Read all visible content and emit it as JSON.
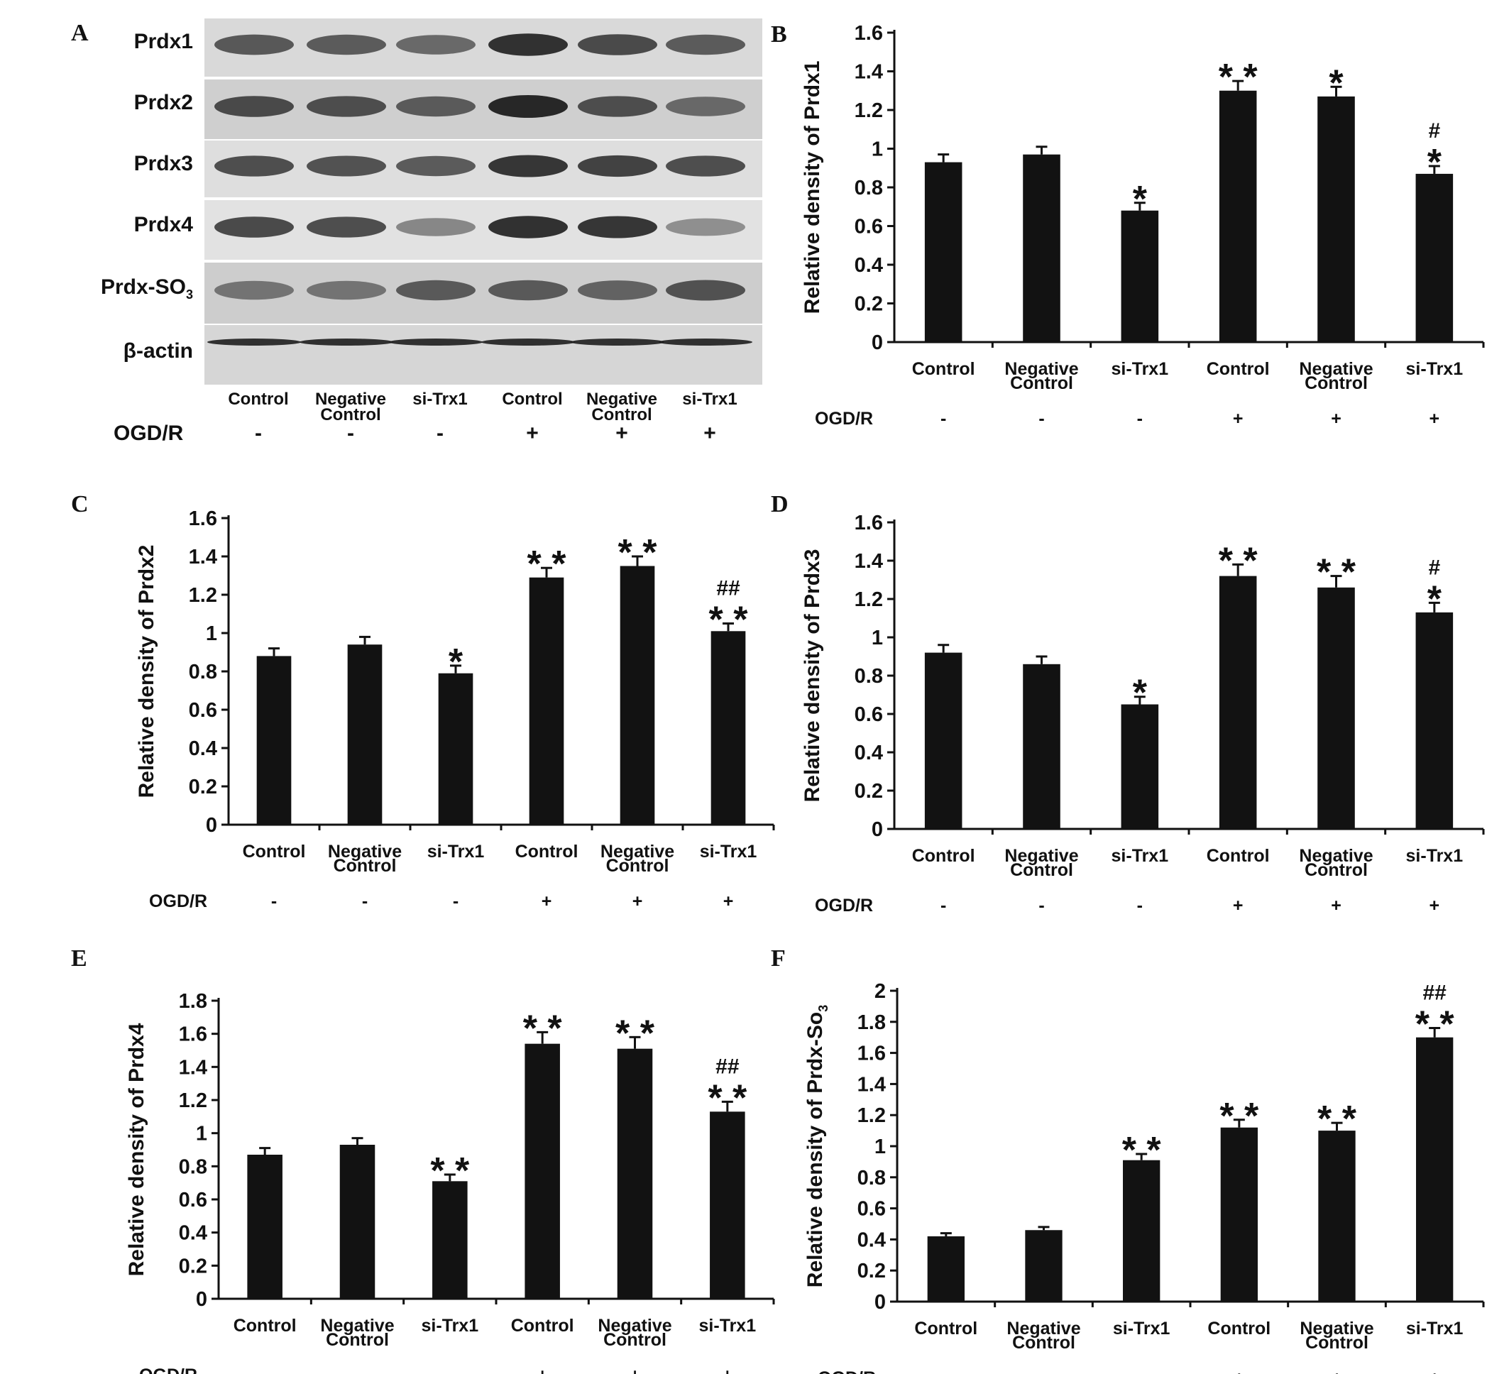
{
  "panel_A": {
    "letter": "A",
    "rows": [
      {
        "label": "Prdx1",
        "intensities": [
          0.72,
          0.7,
          0.62,
          0.95,
          0.8,
          0.7
        ]
      },
      {
        "label": "Prdx2",
        "intensities": [
          0.8,
          0.78,
          0.7,
          1.0,
          0.78,
          0.62
        ]
      },
      {
        "label": "Prdx3",
        "intensities": [
          0.78,
          0.76,
          0.7,
          0.92,
          0.85,
          0.78
        ]
      },
      {
        "label": "Prdx4",
        "intensities": [
          0.8,
          0.78,
          0.45,
          0.95,
          0.92,
          0.4
        ]
      },
      {
        "label": "Prdx-SO",
        "label_sub": "3",
        "intensities": [
          0.55,
          0.55,
          0.7,
          0.7,
          0.65,
          0.75
        ]
      },
      {
        "label": "β-actin",
        "intensities": [
          0.95,
          0.95,
          0.95,
          0.95,
          0.95,
          0.95
        ]
      }
    ],
    "lanes": [
      {
        "name": "Control",
        "ogd": "-"
      },
      {
        "name": "Negative\nControl",
        "ogd": "-"
      },
      {
        "name": "si-Trx1",
        "ogd": "-"
      },
      {
        "name": "Control",
        "ogd": "+"
      },
      {
        "name": "Negative\nControl",
        "ogd": "+"
      },
      {
        "name": "si-Trx1",
        "ogd": "+"
      }
    ],
    "ogd_label": "OGD/R"
  },
  "chart_data": [
    {
      "panel": "B",
      "type": "bar",
      "categories": [
        "Control",
        "Negative\nControl",
        "si-Trx1",
        "Control",
        "Negative\nControl",
        "si-Trx1"
      ],
      "ogd": [
        "-",
        "-",
        "-",
        "+",
        "+",
        "+"
      ],
      "values": [
        0.93,
        0.97,
        0.68,
        1.3,
        1.27,
        0.87
      ],
      "errors": [
        0.04,
        0.04,
        0.04,
        0.05,
        0.05,
        0.04
      ],
      "annotations": [
        [],
        [],
        [
          "*"
        ],
        [
          "* *"
        ],
        [
          "*"
        ],
        [
          "*",
          "#"
        ]
      ],
      "ylabel": "Relative density of Prdx1",
      "ylim": [
        0,
        1.6
      ],
      "yticks": [
        "0",
        "0.2",
        "0.4",
        "0.6",
        "0.8",
        "1",
        "1.2",
        "1.4",
        "1.6"
      ],
      "xlabel_row": "OGD/R",
      "bar_color": "#121212"
    },
    {
      "panel": "C",
      "type": "bar",
      "categories": [
        "Control",
        "Negative\nControl",
        "si-Trx1",
        "Control",
        "Negative\nControl",
        "si-Trx1"
      ],
      "ogd": [
        "-",
        "-",
        "-",
        "+",
        "+",
        "+"
      ],
      "values": [
        0.88,
        0.94,
        0.79,
        1.29,
        1.35,
        1.01
      ],
      "errors": [
        0.04,
        0.04,
        0.04,
        0.05,
        0.05,
        0.04
      ],
      "annotations": [
        [],
        [],
        [
          "*"
        ],
        [
          "* *"
        ],
        [
          "* *"
        ],
        [
          "* *",
          "##"
        ]
      ],
      "ylabel": "Relative density of Prdx2",
      "ylim": [
        0,
        1.6
      ],
      "yticks": [
        "0",
        "0.2",
        "0.4",
        "0.6",
        "0.8",
        "1",
        "1.2",
        "1.4",
        "1.6"
      ],
      "xlabel_row": "OGD/R",
      "bar_color": "#121212"
    },
    {
      "panel": "D",
      "type": "bar",
      "categories": [
        "Control",
        "Negative\nControl",
        "si-Trx1",
        "Control",
        "Negative\nControl",
        "si-Trx1"
      ],
      "ogd": [
        "-",
        "-",
        "-",
        "+",
        "+",
        "+"
      ],
      "values": [
        0.92,
        0.86,
        0.65,
        1.32,
        1.26,
        1.13
      ],
      "errors": [
        0.04,
        0.04,
        0.04,
        0.06,
        0.06,
        0.05
      ],
      "annotations": [
        [],
        [],
        [
          "*"
        ],
        [
          "* *"
        ],
        [
          "* *"
        ],
        [
          "*",
          "#"
        ]
      ],
      "ylabel": "Relative density of Prdx3",
      "ylim": [
        0,
        1.6
      ],
      "yticks": [
        "0",
        "0.2",
        "0.4",
        "0.6",
        "0.8",
        "1",
        "1.2",
        "1.4",
        "1.6"
      ],
      "xlabel_row": "OGD/R",
      "bar_color": "#121212"
    },
    {
      "panel": "E",
      "type": "bar",
      "categories": [
        "Control",
        "Negative\nControl",
        "si-Trx1",
        "Control",
        "Negative\nControl",
        "si-Trx1"
      ],
      "ogd": [
        "-",
        "-",
        "-",
        "+",
        "+",
        "+"
      ],
      "values": [
        0.87,
        0.93,
        0.71,
        1.54,
        1.51,
        1.13
      ],
      "errors": [
        0.04,
        0.04,
        0.04,
        0.07,
        0.07,
        0.06
      ],
      "annotations": [
        [],
        [],
        [
          "* *"
        ],
        [
          "* *"
        ],
        [
          "* *"
        ],
        [
          "* *",
          "##"
        ]
      ],
      "ylabel": "Relative density of Prdx4",
      "ylim": [
        0,
        1.8
      ],
      "yticks": [
        "0",
        "0.2",
        "0.4",
        "0.6",
        "0.8",
        "1",
        "1.2",
        "1.4",
        "1.6",
        "1.8"
      ],
      "xlabel_row": "OGD/R",
      "bar_color": "#121212"
    },
    {
      "panel": "F",
      "type": "bar",
      "categories": [
        "Control",
        "Negative\nControl",
        "si-Trx1",
        "Control",
        "Negative\nControl",
        "si-Trx1"
      ],
      "ogd": [
        "-",
        "-",
        "-",
        "+",
        "+",
        "+"
      ],
      "values": [
        0.42,
        0.46,
        0.91,
        1.12,
        1.1,
        1.7
      ],
      "errors": [
        0.02,
        0.02,
        0.04,
        0.05,
        0.05,
        0.06
      ],
      "annotations": [
        [],
        [],
        [
          "* *"
        ],
        [
          "* *"
        ],
        [
          "* *"
        ],
        [
          "* *",
          "##"
        ]
      ],
      "ylabel": "Relative density of Prdx-So",
      "ylabel_sub": "3",
      "ylim": [
        0,
        2
      ],
      "yticks": [
        "0",
        "0.2",
        "0.4",
        "0.6",
        "0.8",
        "1",
        "1.2",
        "1.4",
        "1.6",
        "1.8",
        "2"
      ],
      "xlabel_row": "OGD/R",
      "bar_color": "#121212"
    }
  ]
}
